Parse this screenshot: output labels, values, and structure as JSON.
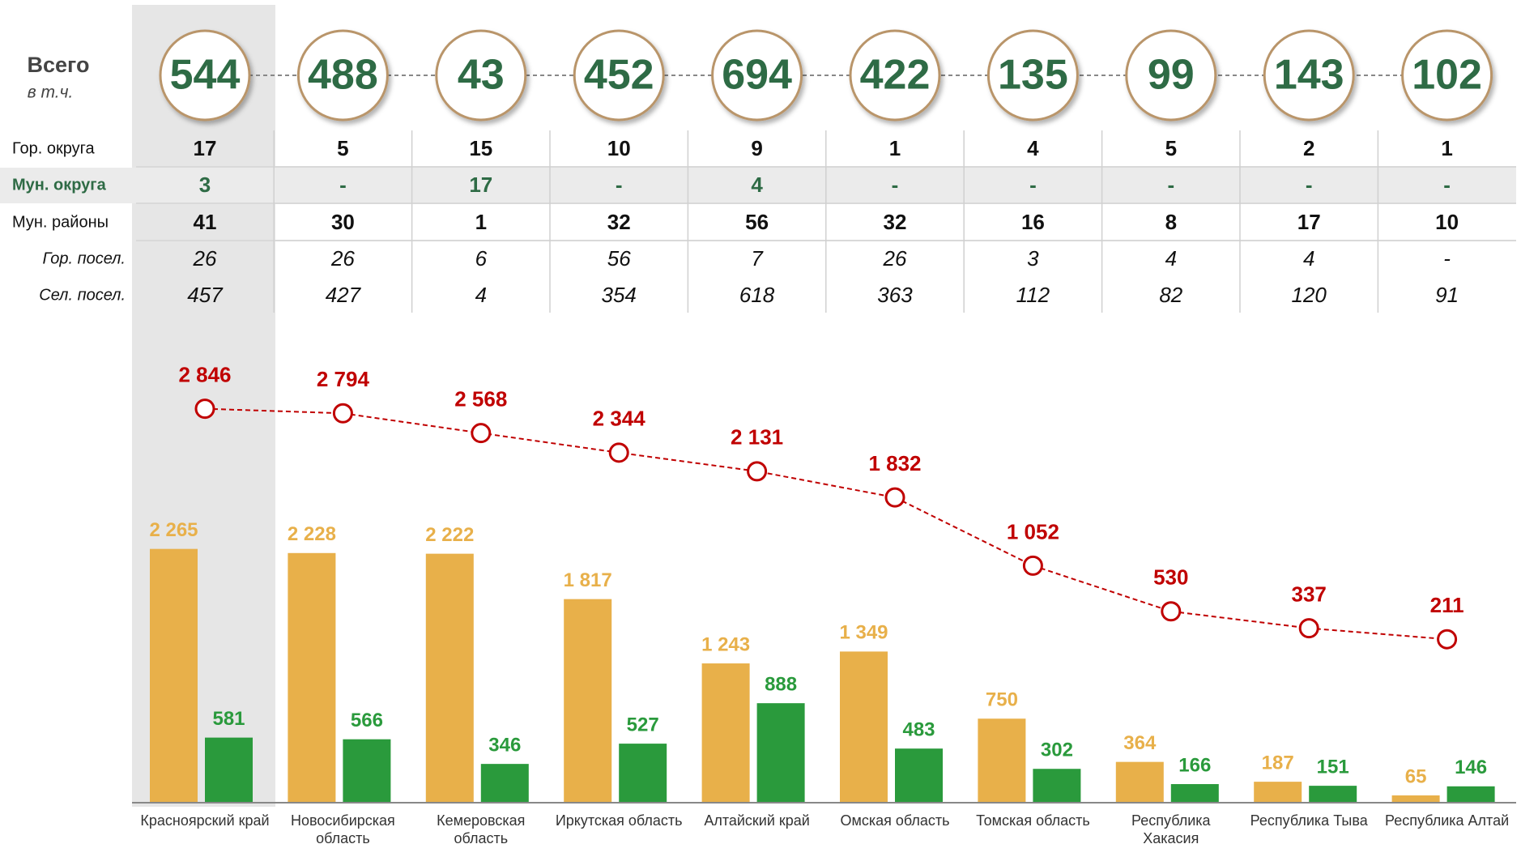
{
  "table": {
    "header": {
      "label": "Всего",
      "sublabel": "в т.ч."
    },
    "totals": [
      544,
      488,
      43,
      452,
      694,
      422,
      135,
      99,
      143,
      102
    ],
    "rows": [
      {
        "label": "Гор. округа",
        "values": [
          17,
          5,
          15,
          10,
          9,
          1,
          4,
          5,
          2,
          1
        ]
      },
      {
        "label": "Мун. округа",
        "values": [
          3,
          "-",
          17,
          "-",
          4,
          "-",
          "-",
          "-",
          "-",
          "-"
        ]
      },
      {
        "label": "Мун. районы",
        "values": [
          41,
          30,
          1,
          32,
          56,
          32,
          16,
          8,
          17,
          10
        ]
      },
      {
        "label": "Гор. посел.",
        "values": [
          26,
          26,
          6,
          56,
          7,
          26,
          3,
          4,
          4,
          "-"
        ]
      },
      {
        "label": "Сел. посел.",
        "values": [
          457,
          427,
          4,
          354,
          618,
          363,
          112,
          82,
          120,
          91
        ]
      }
    ]
  },
  "chart_data": {
    "type": "bar",
    "categories": [
      "Красноярский край",
      "Новосибирская область",
      "Кемеровская область",
      "Иркутская область",
      "Алтайский край",
      "Омская область",
      "Томская область",
      "Республика Хакасия",
      "Республика Тыва",
      "Республика Алтай"
    ],
    "ylim": [
      0,
      3000
    ],
    "y2lim": [
      0,
      3500
    ],
    "series": [
      {
        "color": "#e8b04a",
        "values": [
          2265,
          2228,
          2222,
          1817,
          1243,
          1349,
          750,
          364,
          187,
          65
        ],
        "value_labels": [
          "2 265",
          "2 228",
          "2 222",
          "1 817",
          "1 243",
          "1 349",
          "750",
          "364",
          "187",
          "65"
        ]
      },
      {
        "color": "#2a9a3c",
        "values": [
          581,
          566,
          346,
          527,
          888,
          483,
          302,
          166,
          151,
          146
        ]
      },
      {
        "type": "line",
        "axis": "y2",
        "color": "#c00000",
        "values": [
          2846,
          2794,
          2568,
          2344,
          2131,
          1832,
          1052,
          530,
          337,
          211
        ],
        "value_labels": [
          "2 846",
          "2 794",
          "2 568",
          "2 344",
          "2 131",
          "1 832",
          "1 052",
          "530",
          "337",
          "211"
        ]
      }
    ]
  }
}
